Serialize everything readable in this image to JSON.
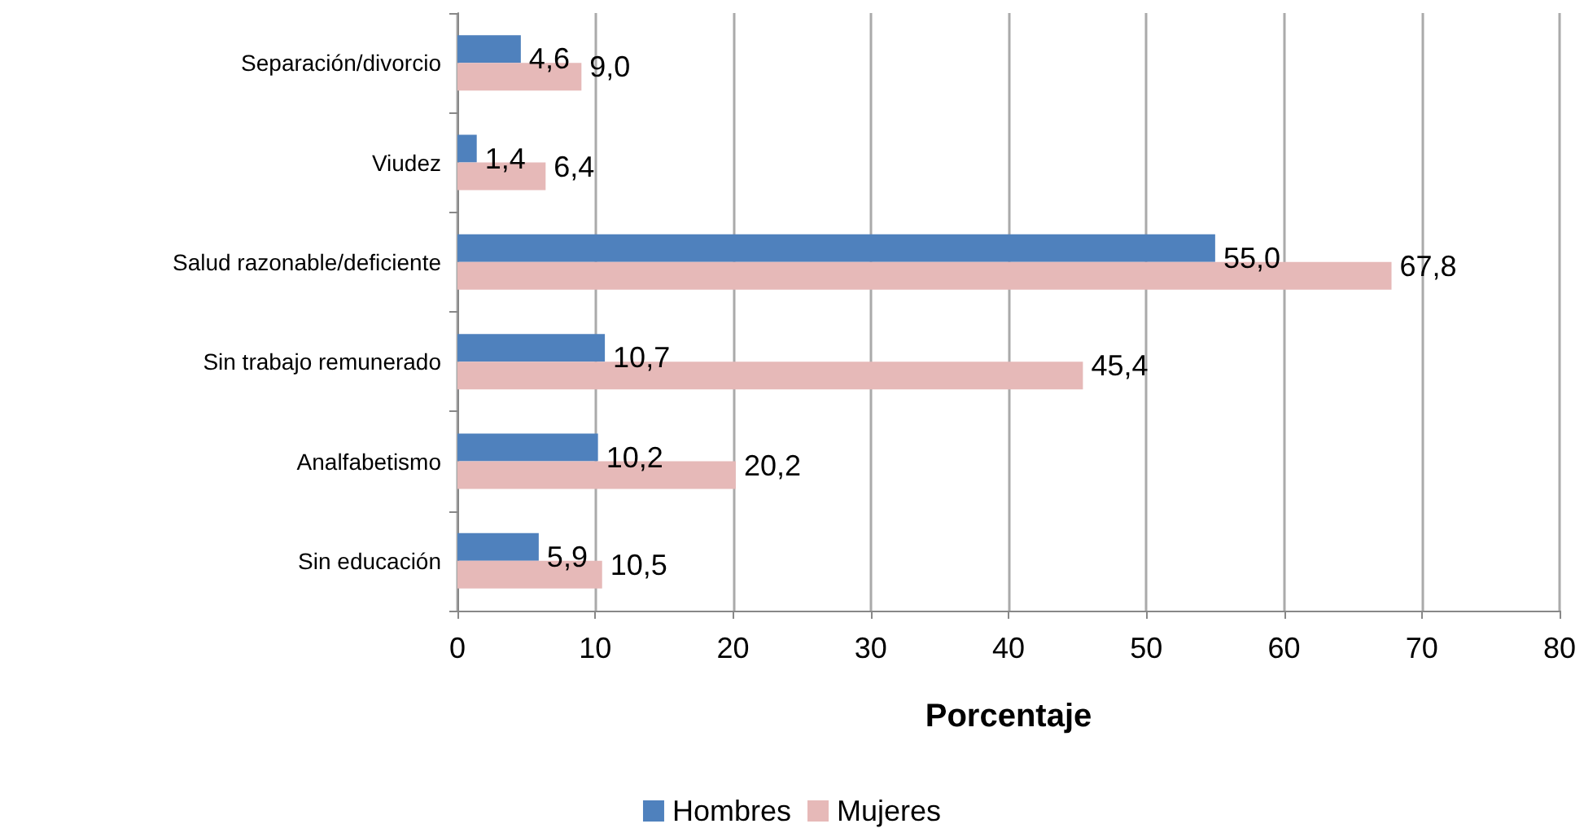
{
  "chart_data": {
    "type": "bar",
    "orientation": "horizontal",
    "xlabel": "Porcentaje",
    "categories": [
      "Separación/divorcio",
      "Viudez",
      "Salud razonable/deficiente",
      "Sin trabajo remunerado",
      "Analfabetismo",
      "Sin educación"
    ],
    "series": [
      {
        "name": "Hombres",
        "color": "#4f81bd",
        "values": [
          4.6,
          1.4,
          55.0,
          10.7,
          10.2,
          5.9
        ],
        "value_labels": [
          "4,6",
          "1,4",
          "55,0",
          "10,7",
          "10,2",
          "5,9"
        ]
      },
      {
        "name": "Mujeres",
        "color": "#e6b9b8",
        "values": [
          9.0,
          6.4,
          67.8,
          45.4,
          20.2,
          10.5
        ],
        "value_labels": [
          "9,0",
          "6,4",
          "67,8",
          "45,4",
          "20,2",
          "10,5"
        ]
      }
    ],
    "xlim": [
      0,
      80
    ],
    "xticks": [
      0,
      10,
      20,
      30,
      40,
      50,
      60,
      70,
      80
    ],
    "grid": "x",
    "legend": "bottom"
  }
}
